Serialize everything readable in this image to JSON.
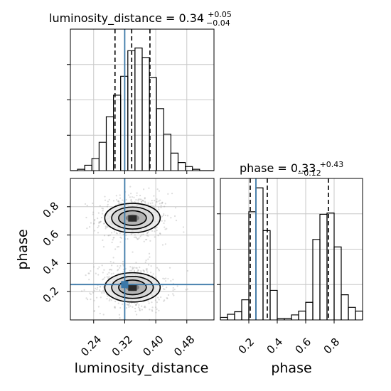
{
  "chart_data": {
    "type": "corner",
    "parameters": [
      "luminosity_distance",
      "phase"
    ],
    "truths": {
      "luminosity_distance": 0.32,
      "phase": 0.25
    },
    "colors": {
      "truth": "#3b78a8",
      "hist": "#000000",
      "grid": "#c8c8c8",
      "points": "#9a9a9a"
    },
    "grid": true,
    "luminosity_distance": {
      "title_main": "luminosity_distance = 0.34",
      "title_plus": "+0.05",
      "title_minus": "−0.04",
      "xlabel": "luminosity_distance",
      "xlim": [
        0.18,
        0.55
      ],
      "xticks": [
        0.24,
        0.32,
        0.4,
        0.48
      ],
      "xtick_labels": [
        "0.24",
        "0.32",
        "0.40",
        "0.48"
      ],
      "quantiles": [
        0.295,
        0.338,
        0.385
      ],
      "hist_edges": [
        0.18,
        0.1985,
        0.217,
        0.2355,
        0.254,
        0.2725,
        0.291,
        0.3095,
        0.328,
        0.3465,
        0.365,
        0.3835,
        0.402,
        0.4205,
        0.439,
        0.4575,
        0.476,
        0.4945,
        0.513,
        0.5315,
        0.55
      ],
      "hist_counts": [
        0,
        2,
        8,
        18,
        42,
        80,
        112,
        140,
        178,
        182,
        168,
        138,
        92,
        54,
        26,
        12,
        6,
        2,
        0,
        0
      ],
      "hist_ymax": 210
    },
    "phase": {
      "title_main": "phase = 0.33",
      "title_plus": "+0.43",
      "title_minus": "−0.12",
      "xlabel": "phase",
      "xlim": [
        0.0,
        1.0
      ],
      "xticks": [
        0.2,
        0.4,
        0.6,
        0.8
      ],
      "xtick_labels": [
        "0.2",
        "0.4",
        "0.6",
        "0.8"
      ],
      "quantiles": [
        0.21,
        0.33,
        0.76
      ],
      "hist_edges": [
        0.0,
        0.05,
        0.1,
        0.15,
        0.2,
        0.25,
        0.3,
        0.35,
        0.4,
        0.45,
        0.5,
        0.55,
        0.6,
        0.65,
        0.7,
        0.75,
        0.8,
        0.85,
        0.9,
        0.95,
        1.0
      ],
      "hist_counts": [
        4,
        9,
        13,
        32,
        172,
        210,
        142,
        47,
        2,
        2,
        8,
        14,
        28,
        128,
        168,
        170,
        116,
        40,
        20,
        14
      ],
      "hist_ymax": 225
    },
    "joint": {
      "ylabel": "phase",
      "ylim": [
        0.0,
        1.0
      ],
      "yticks": [
        0.2,
        0.4,
        0.6,
        0.8
      ],
      "ytick_labels": [
        "0.2",
        "0.4",
        "0.6",
        "0.8"
      ],
      "modes": [
        {
          "x": 0.34,
          "y": 0.72,
          "sx": 0.035,
          "sy": 0.07
        },
        {
          "x": 0.34,
          "y": 0.23,
          "sx": 0.035,
          "sy": 0.07
        }
      ]
    }
  }
}
